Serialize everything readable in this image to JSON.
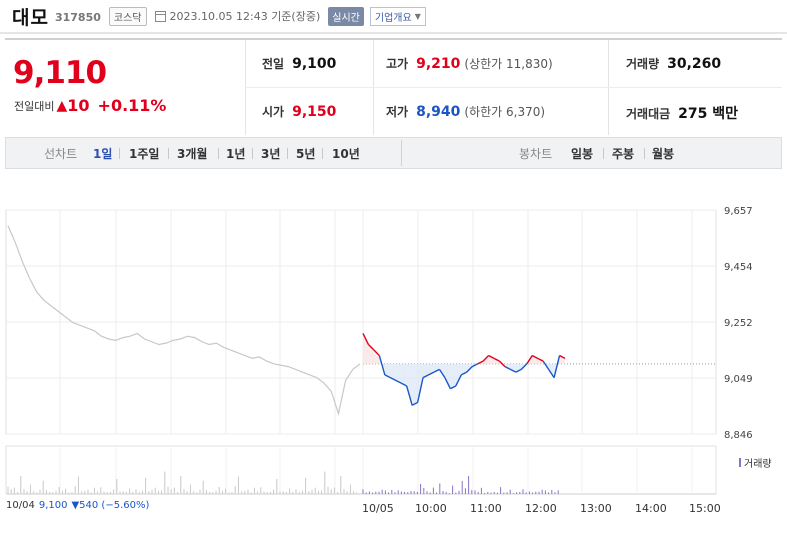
{
  "header": {
    "name": "대모",
    "code": "317850",
    "market": "코스닥",
    "datetime": "2023.10.05 12:43 기준(장중)",
    "realtime": "실시간",
    "company_btn": "기업개요"
  },
  "quote": {
    "price": "9,110",
    "change_label": "전일대비",
    "change_value": "10",
    "change_pct": "+0.11%",
    "prev_close_label": "전일",
    "prev_close": "9,100",
    "open_label": "시가",
    "open": "9,150",
    "high_label": "고가",
    "high": "9,210",
    "upper_limit": "(상한가 11,830)",
    "low_label": "저가",
    "low": "8,940",
    "lower_limit": "(하한가 6,370)",
    "volume_label": "거래량",
    "volume": "30,260",
    "amount_label": "거래대금",
    "amount": "275 백만"
  },
  "period_bar": {
    "line_label": "선차트",
    "line_items": [
      "1일",
      "1주일",
      "3개월",
      "1년",
      "3년",
      "5년",
      "10년"
    ],
    "active_line": "1일",
    "candle_label": "봉차트",
    "candle_items": [
      "일봉",
      "주봉",
      "월봉"
    ]
  },
  "chart_data": {
    "type": "line",
    "y_ticks": [
      "9,657",
      "9,454",
      "9,252",
      "9,049",
      "8,846"
    ],
    "ylim": [
      8846,
      9657
    ],
    "prev_close": 9100,
    "x_labels": [
      "10/04",
      "10/05",
      "10:00",
      "11:00",
      "12:00",
      "13:00",
      "14:00",
      "15:00"
    ],
    "series": [
      {
        "period": "10/04",
        "values": [
          9600,
          9540,
          9470,
          9410,
          9360,
          9330,
          9310,
          9290,
          9270,
          9250,
          9240,
          9230,
          9220,
          9200,
          9190,
          9185,
          9195,
          9200,
          9210,
          9190,
          9180,
          9170,
          9175,
          9185,
          9190,
          9200,
          9195,
          9180,
          9170,
          9175,
          9160,
          9150,
          9140,
          9130,
          9120,
          9125,
          9110,
          9100,
          9095,
          9090,
          9080,
          9070,
          9060,
          9050,
          9030,
          9000,
          8920,
          9040,
          9080,
          9100
        ]
      },
      {
        "period": "10/05",
        "values": [
          9210,
          9170,
          9150,
          9130,
          9060,
          9050,
          9040,
          9030,
          9020,
          8950,
          8960,
          9050,
          9060,
          9070,
          9080,
          9050,
          9010,
          9020,
          9060,
          9070,
          9090,
          9100,
          9110,
          9130,
          9120,
          9110,
          9090,
          9080,
          9070,
          9080,
          9100,
          9130,
          9120,
          9110,
          9080,
          9050,
          9130,
          9120
        ]
      }
    ]
  },
  "bottom_info": {
    "date": "10/04",
    "price": "9,100",
    "change": "▼540 (−5.60%)"
  },
  "volume_label": "거래량",
  "colors": {
    "up": "#e0001b",
    "down": "#1a56c8",
    "prev": "#c8c8c8",
    "volume": "#8a72c8"
  }
}
